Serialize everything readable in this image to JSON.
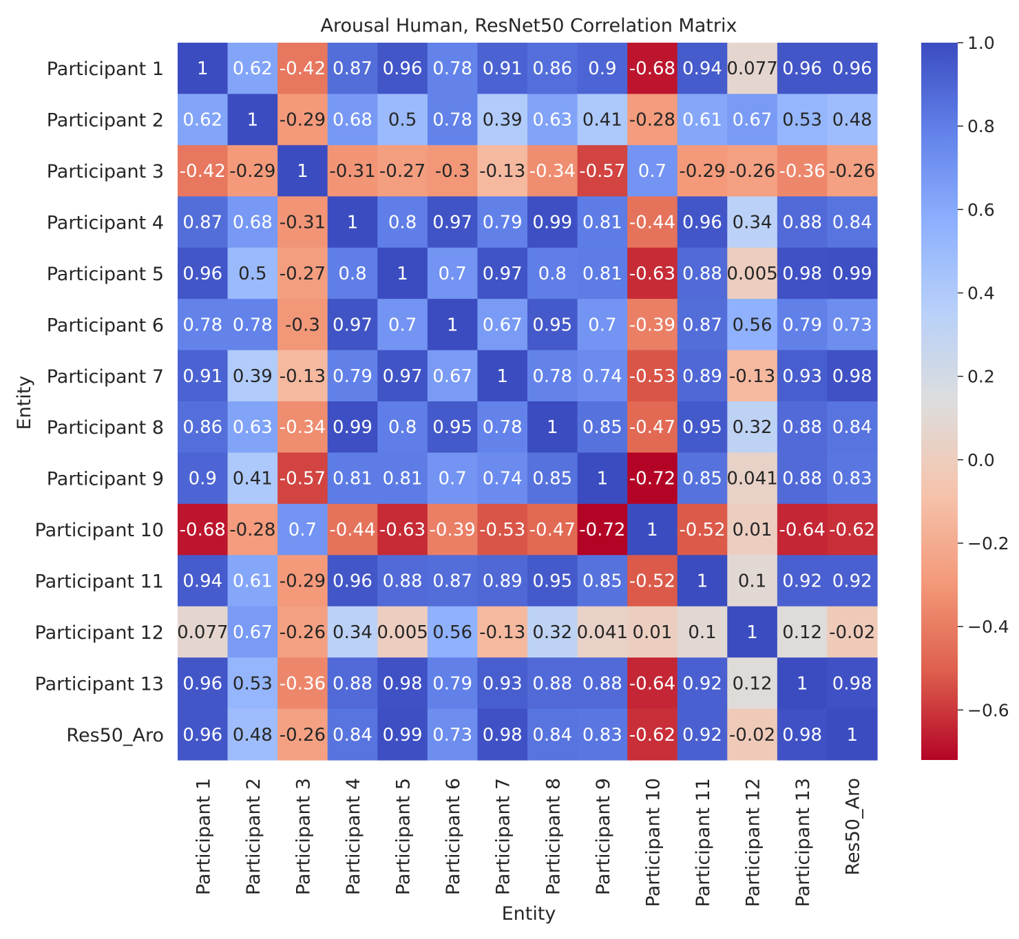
{
  "chart_data": {
    "type": "heatmap",
    "title": "Arousal Human, ResNet50 Correlation Matrix",
    "xlabel": "Entity",
    "ylabel": "Entity",
    "colormap": "coolwarm",
    "vmin": -0.72,
    "vmax": 1.0,
    "labels": [
      "Participant 1",
      "Participant 2",
      "Participant 3",
      "Participant 4",
      "Participant 5",
      "Participant 6",
      "Participant 7",
      "Participant 8",
      "Participant 9",
      "Participant 10",
      "Participant 11",
      "Participant 12",
      "Participant 13",
      "Res50_Aro"
    ],
    "values": [
      [
        1,
        0.62,
        -0.42,
        0.87,
        0.96,
        0.78,
        0.91,
        0.86,
        0.9,
        -0.68,
        0.94,
        0.077,
        0.96,
        0.96
      ],
      [
        0.62,
        1,
        -0.29,
        0.68,
        0.5,
        0.78,
        0.39,
        0.63,
        0.41,
        -0.28,
        0.61,
        0.67,
        0.53,
        0.48
      ],
      [
        -0.42,
        -0.29,
        1,
        -0.31,
        -0.27,
        -0.3,
        -0.13,
        -0.34,
        -0.57,
        0.7,
        -0.29,
        -0.26,
        -0.36,
        -0.26
      ],
      [
        0.87,
        0.68,
        -0.31,
        1,
        0.8,
        0.97,
        0.79,
        0.99,
        0.81,
        -0.44,
        0.96,
        0.34,
        0.88,
        0.84
      ],
      [
        0.96,
        0.5,
        -0.27,
        0.8,
        1,
        0.7,
        0.97,
        0.8,
        0.81,
        -0.63,
        0.88,
        0.005,
        0.98,
        0.99
      ],
      [
        0.78,
        0.78,
        -0.3,
        0.97,
        0.7,
        1,
        0.67,
        0.95,
        0.7,
        -0.39,
        0.87,
        0.56,
        0.79,
        0.73
      ],
      [
        0.91,
        0.39,
        -0.13,
        0.79,
        0.97,
        0.67,
        1,
        0.78,
        0.74,
        -0.53,
        0.89,
        -0.13,
        0.93,
        0.98
      ],
      [
        0.86,
        0.63,
        -0.34,
        0.99,
        0.8,
        0.95,
        0.78,
        1,
        0.85,
        -0.47,
        0.95,
        0.32,
        0.88,
        0.84
      ],
      [
        0.9,
        0.41,
        -0.57,
        0.81,
        0.81,
        0.7,
        0.74,
        0.85,
        1,
        -0.72,
        0.85,
        0.041,
        0.88,
        0.83
      ],
      [
        -0.68,
        -0.28,
        0.7,
        -0.44,
        -0.63,
        -0.39,
        -0.53,
        -0.47,
        -0.72,
        1,
        -0.52,
        0.01,
        -0.64,
        -0.62
      ],
      [
        0.94,
        0.61,
        -0.29,
        0.96,
        0.88,
        0.87,
        0.89,
        0.95,
        0.85,
        -0.52,
        1,
        0.1,
        0.92,
        0.92
      ],
      [
        0.077,
        0.67,
        -0.26,
        0.34,
        0.005,
        0.56,
        -0.13,
        0.32,
        0.041,
        0.01,
        0.1,
        1,
        0.12,
        -0.02
      ],
      [
        0.96,
        0.53,
        -0.36,
        0.88,
        0.98,
        0.79,
        0.93,
        0.88,
        0.88,
        -0.64,
        0.92,
        0.12,
        1,
        0.98
      ],
      [
        0.96,
        0.48,
        -0.26,
        0.84,
        0.99,
        0.73,
        0.98,
        0.84,
        0.83,
        -0.62,
        0.92,
        -0.02,
        0.98,
        1
      ]
    ],
    "colorbar_ticks": [
      1.0,
      0.8,
      0.6,
      0.4,
      0.2,
      0.0,
      -0.2,
      -0.4,
      -0.6
    ],
    "colorbar_tick_labels": [
      "1.0",
      "0.8",
      "0.6",
      "0.4",
      "0.2",
      "0.0",
      "−0.2",
      "−0.4",
      "−0.6"
    ]
  }
}
